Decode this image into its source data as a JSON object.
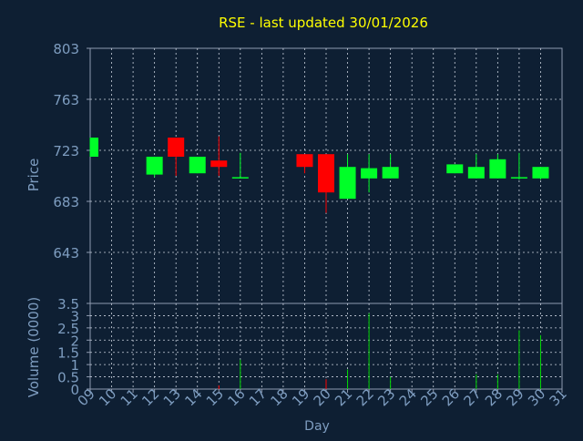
{
  "title": "RSE - last updated 30/01/2026",
  "colors": {
    "background": "#0e1f33",
    "plot_background": "#0e1f33",
    "frame": "#8f9bb0",
    "grid": "#c9d1dd",
    "title": "#ffff00",
    "axis_text": "#7e9dc0",
    "up": "#00ff28",
    "down": "#ff0000",
    "volume": "#00d800",
    "volume_down": "#ff0000"
  },
  "chart_data": [
    {
      "type": "candlestick",
      "title": "RSE - last updated 30/01/2026",
      "ylabel": "Price",
      "ylim": [
        603,
        803
      ],
      "yticks": [
        643,
        683,
        723,
        763,
        803
      ],
      "xlim": [
        9,
        31
      ],
      "grid": true,
      "candles": [
        {
          "day": 9,
          "open": 718,
          "high": 733,
          "low": 718,
          "close": 733
        },
        {
          "day": 12,
          "open": 704,
          "high": 718,
          "low": 702,
          "close": 718
        },
        {
          "day": 13,
          "open": 733,
          "high": 733,
          "low": 703,
          "close": 718
        },
        {
          "day": 14,
          "open": 705,
          "high": 718,
          "low": 705,
          "close": 718
        },
        {
          "day": 15,
          "open": 715,
          "high": 734,
          "low": 703,
          "close": 710
        },
        {
          "day": 16,
          "open": 701,
          "high": 721,
          "low": 701,
          "close": 702
        },
        {
          "day": 19,
          "open": 720,
          "high": 720,
          "low": 705,
          "close": 710
        },
        {
          "day": 20,
          "open": 720,
          "high": 720,
          "low": 674,
          "close": 690
        },
        {
          "day": 21,
          "open": 685,
          "high": 720,
          "low": 685,
          "close": 710
        },
        {
          "day": 22,
          "open": 701,
          "high": 720,
          "low": 690,
          "close": 709
        },
        {
          "day": 23,
          "open": 701,
          "high": 720,
          "low": 701,
          "close": 710
        },
        {
          "day": 26,
          "open": 705,
          "high": 712,
          "low": 705,
          "close": 712
        },
        {
          "day": 27,
          "open": 701,
          "high": 720,
          "low": 701,
          "close": 710
        },
        {
          "day": 28,
          "open": 701,
          "high": 720,
          "low": 701,
          "close": 716
        },
        {
          "day": 29,
          "open": 701,
          "high": 721,
          "low": 700,
          "close": 702
        },
        {
          "day": 30,
          "open": 701,
          "high": 710,
          "low": 700,
          "close": 710
        }
      ]
    },
    {
      "type": "bar",
      "ylabel": "Volume (0000)",
      "xlabel": "Day",
      "ylim": [
        0,
        3.5
      ],
      "yticks": [
        0,
        0.5,
        1,
        1.5,
        2,
        2.5,
        3,
        3.5
      ],
      "ytick_labels": [
        "0",
        "0.5",
        "1",
        "1.5",
        "2",
        "2.5",
        "3",
        "3.5"
      ],
      "xlim": [
        9,
        31
      ],
      "x": [
        9,
        10,
        11,
        12,
        13,
        14,
        15,
        16,
        17,
        18,
        19,
        20,
        21,
        22,
        23,
        24,
        25,
        26,
        27,
        28,
        29,
        30,
        31
      ],
      "xtick_labels": [
        "09",
        "10",
        "11",
        "12",
        "13",
        "14",
        "15",
        "16",
        "17",
        "18",
        "19",
        "20",
        "21",
        "22",
        "23",
        "24",
        "25",
        "26",
        "27",
        "28",
        "29",
        "30",
        "31"
      ],
      "grid": true,
      "bars": [
        {
          "day": 15,
          "value": 0.15,
          "direction": "down"
        },
        {
          "day": 16,
          "value": 1.2,
          "direction": "up"
        },
        {
          "day": 20,
          "value": 0.4,
          "direction": "down"
        },
        {
          "day": 21,
          "value": 0.8,
          "direction": "up"
        },
        {
          "day": 22,
          "value": 3.1,
          "direction": "up"
        },
        {
          "day": 23,
          "value": 0.5,
          "direction": "up"
        },
        {
          "day": 27,
          "value": 0.6,
          "direction": "up"
        },
        {
          "day": 28,
          "value": 0.6,
          "direction": "up"
        },
        {
          "day": 29,
          "value": 2.4,
          "direction": "up"
        },
        {
          "day": 30,
          "value": 2.2,
          "direction": "up"
        }
      ]
    }
  ]
}
